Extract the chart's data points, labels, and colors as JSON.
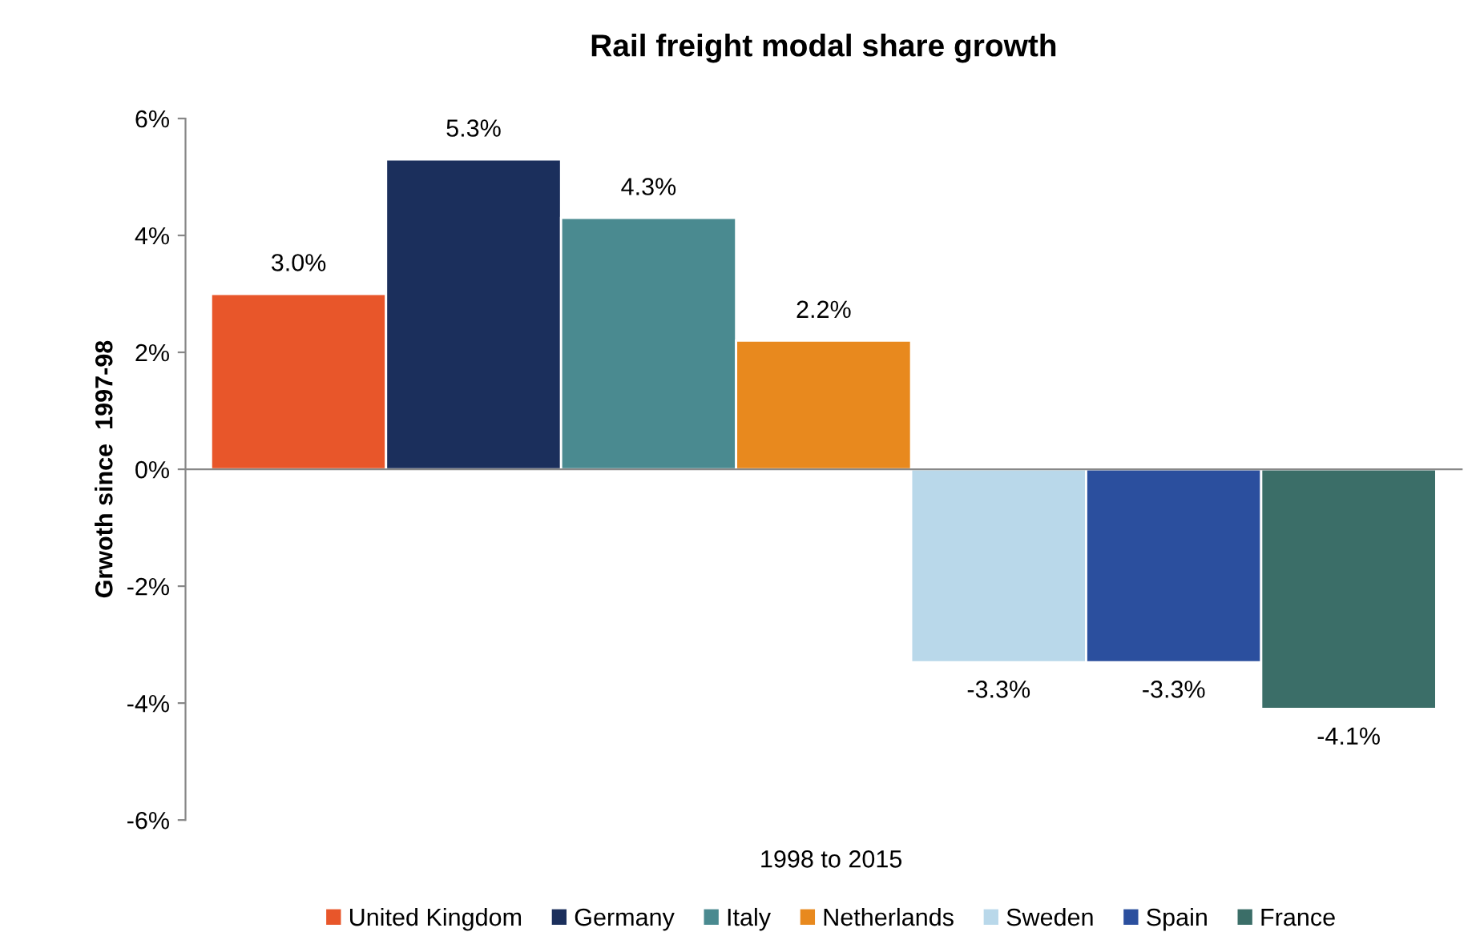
{
  "chart_data": {
    "type": "bar",
    "title": "Rail freight modal share growth",
    "ylabel": "Grwoth since  1997-98",
    "xlabel": "1998 to 2015",
    "categories": [
      null
    ],
    "series": [
      {
        "name": "United Kingdom",
        "color": "#e8562a",
        "values": [
          3.0
        ],
        "value_labels": [
          "3.0%"
        ]
      },
      {
        "name": "Germany",
        "color": "#1b2f5c",
        "values": [
          5.3
        ],
        "value_labels": [
          "5.3%"
        ]
      },
      {
        "name": "Italy",
        "color": "#4a8a90",
        "values": [
          4.3
        ],
        "value_labels": [
          "4.3%"
        ]
      },
      {
        "name": "Netherlands",
        "color": "#e8891e",
        "values": [
          2.2
        ],
        "value_labels": [
          "2.2%"
        ]
      },
      {
        "name": "Sweden",
        "color": "#b9d8ea",
        "values": [
          -3.3
        ],
        "value_labels": [
          "-3.3%"
        ]
      },
      {
        "name": "Spain",
        "color": "#2b4f9e",
        "values": [
          -3.3
        ],
        "value_labels": [
          "-3.3%"
        ]
      },
      {
        "name": "France",
        "color": "#3b6e68",
        "values": [
          -4.1
        ],
        "value_labels": [
          "-4.1%"
        ]
      }
    ],
    "ylim": [
      -6,
      6
    ],
    "yticks": [
      {
        "value": -6,
        "label": "-6%"
      },
      {
        "value": -4,
        "label": "-4%"
      },
      {
        "value": -2,
        "label": "-2%"
      },
      {
        "value": 0,
        "label": "0%"
      },
      {
        "value": 2,
        "label": "2%"
      },
      {
        "value": 4,
        "label": "4%"
      },
      {
        "value": 6,
        "label": "6%"
      }
    ],
    "tick_labels": "y",
    "legend": "bottom"
  }
}
